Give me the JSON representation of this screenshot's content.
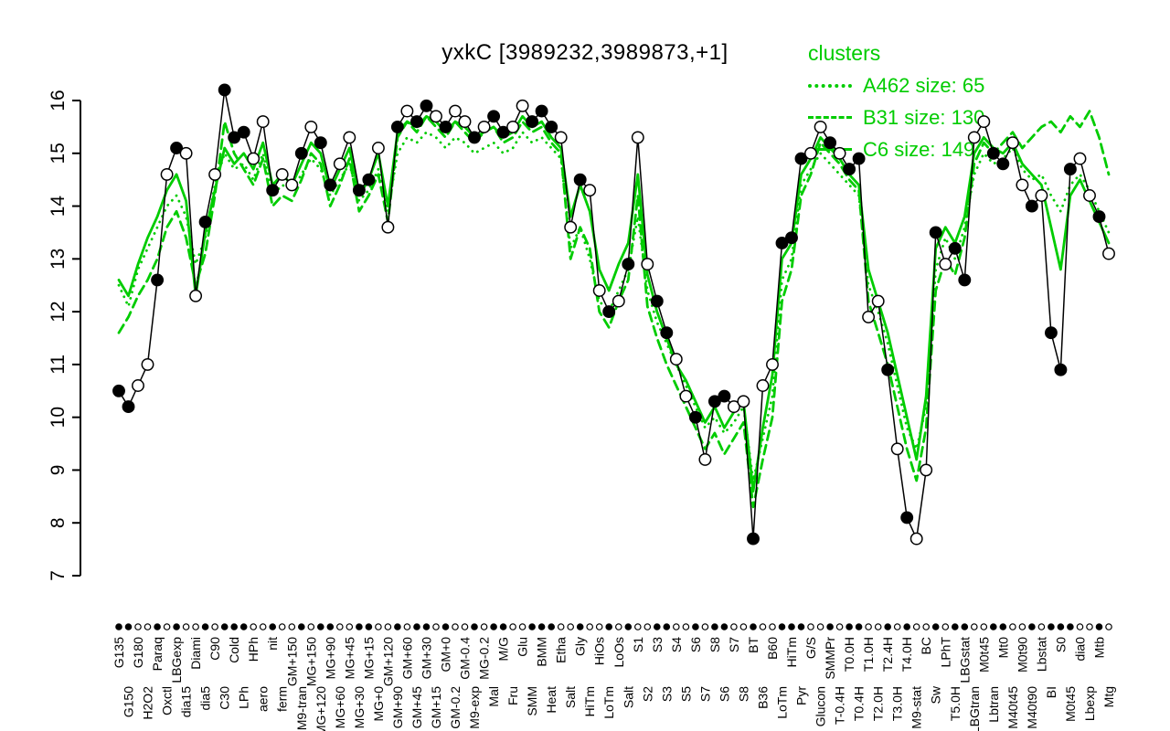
{
  "title": "yxkC [3989232,3989873,+1]",
  "legend": {
    "title": "clusters",
    "entries": [
      {
        "label": "A462 size: 65",
        "style": "dotted"
      },
      {
        "label": "B31 size: 130",
        "style": "dashed"
      },
      {
        "label": "C6 size: 149",
        "style": "solid"
      }
    ]
  },
  "colors": {
    "cluster_green": "#00CC00",
    "series_black": "#000000",
    "background": "#FFFFFF"
  },
  "chart_data": {
    "type": "line",
    "title": "yxkC [3989232,3989873,+1]",
    "xlabel": "",
    "ylabel": "",
    "ylim": [
      7,
      16.4
    ],
    "yticks": [
      7,
      8,
      9,
      10,
      11,
      12,
      13,
      14,
      15,
      16
    ],
    "grid": false,
    "legend_position": "top-right",
    "categories": [
      "G135",
      "G150",
      "G180",
      "H2O2",
      "Paraq",
      "Oxctl",
      "LBGexp",
      "dia15",
      "Diami",
      "dia5",
      "C90",
      "C30",
      "Cold",
      "LPh",
      "HPh",
      "aero",
      "nit",
      "ferm",
      "GM+150",
      "M9-tran",
      "MG+150",
      "MG+120",
      "MG+90",
      "MG+60",
      "MG+45",
      "MG+30",
      "MG+15",
      "MG+0",
      "GM+120",
      "GM+90",
      "GM+60",
      "GM+45",
      "GM+30",
      "GM+15",
      "GM+0",
      "GM-0.2",
      "GM-0.4",
      "M9-exp",
      "MG-0.2",
      "Mal",
      "M/G",
      "Fru",
      "Glu",
      "SMM",
      "BMM",
      "Heat",
      "Etha",
      "Salt",
      "Gly",
      "HiTm",
      "HiOs",
      "LoTm",
      "LoOs",
      "Salt",
      "S1",
      "S2",
      "S3",
      "S3",
      "S4",
      "S5",
      "S6",
      "S7",
      "S8",
      "S6",
      "S7",
      "S8",
      "BT",
      "B36",
      "B60",
      "LoTm",
      "HiTm",
      "Pyr",
      "G/S",
      "Glucon",
      "SMMPr",
      "T-0.4H",
      "T0.0H",
      "T0.4H",
      "T1.0H",
      "T2.0H",
      "T2.4H",
      "T3.0H",
      "T4.0H",
      "M9-stat",
      "BC",
      "Sw",
      "LPhT",
      "T5.0H",
      "LBGstat",
      "LBGtran",
      "M0t45",
      "Lbtran",
      "Mt0",
      "M40t45",
      "M0t90",
      "M40t90",
      "Lbstat",
      "BI",
      "S0",
      "M0t45",
      "dia0",
      "Lbexp",
      "Mtb",
      "Mtg"
    ],
    "series": [
      {
        "name": "yxkC expression",
        "color": "#000000",
        "style": "points-line",
        "values": [
          10.5,
          10.2,
          10.6,
          11.0,
          12.6,
          14.6,
          15.1,
          15.0,
          12.3,
          13.7,
          14.6,
          16.2,
          15.3,
          15.4,
          14.9,
          15.6,
          14.3,
          14.6,
          14.4,
          15.0,
          15.5,
          15.2,
          14.4,
          14.8,
          15.3,
          14.3,
          14.5,
          15.1,
          13.6,
          15.5,
          15.8,
          15.6,
          15.9,
          15.7,
          15.5,
          15.8,
          15.6,
          15.3,
          15.5,
          15.7,
          15.4,
          15.5,
          15.9,
          15.6,
          15.8,
          15.5,
          15.3,
          13.6,
          14.5,
          14.3,
          12.4,
          12.0,
          12.2,
          12.9,
          15.3,
          12.9,
          12.2,
          11.6,
          11.1,
          10.4,
          10.0,
          9.2,
          10.3,
          10.4,
          10.2,
          10.3,
          7.7,
          10.6,
          11.0,
          13.3,
          13.4,
          14.9,
          15.0,
          15.5,
          15.2,
          15.0,
          14.7,
          14.9,
          11.9,
          12.2,
          10.9,
          9.4,
          8.1,
          7.7,
          9.0,
          13.5,
          12.9,
          13.2,
          12.6,
          15.3,
          15.6,
          15.0,
          14.8,
          15.2,
          14.4,
          14.0,
          14.2,
          11.6,
          10.9,
          14.7,
          14.9,
          14.2,
          13.8,
          13.1
        ]
      },
      {
        "name": "A462 size: 65",
        "color": "#00CC00",
        "style": "dotted",
        "values": [
          12.5,
          12.1,
          12.8,
          13.2,
          13.6,
          14.0,
          14.2,
          13.8,
          12.9,
          13.4,
          14.4,
          15.0,
          14.7,
          14.8,
          14.5,
          15.0,
          14.2,
          14.4,
          14.3,
          14.6,
          14.9,
          14.7,
          14.2,
          14.5,
          14.8,
          14.1,
          14.3,
          14.7,
          13.9,
          15.0,
          15.3,
          15.2,
          15.4,
          15.3,
          15.1,
          15.3,
          15.2,
          15.0,
          15.1,
          15.2,
          15.0,
          15.1,
          15.4,
          15.2,
          15.3,
          15.1,
          14.9,
          13.2,
          13.6,
          13.0,
          12.2,
          12.0,
          12.4,
          12.8,
          13.8,
          12.4,
          11.8,
          11.4,
          11.0,
          10.6,
          10.2,
          9.8,
          10.0,
          9.7,
          9.9,
          10.2,
          8.8,
          9.6,
          10.4,
          12.6,
          13.0,
          14.4,
          14.7,
          15.0,
          14.8,
          14.6,
          14.4,
          14.2,
          12.5,
          12.0,
          11.4,
          10.6,
          9.8,
          9.4,
          10.2,
          12.8,
          13.4,
          13.0,
          13.6,
          14.6,
          15.0,
          14.8,
          14.9,
          15.1,
          14.7,
          14.5,
          14.6,
          14.2,
          13.9,
          14.4,
          14.6,
          14.3,
          13.9,
          13.5
        ]
      },
      {
        "name": "B31 size: 130",
        "color": "#00CC00",
        "style": "dashed",
        "values": [
          11.6,
          11.9,
          12.3,
          12.6,
          13.0,
          13.6,
          13.9,
          13.4,
          12.5,
          13.1,
          14.2,
          15.6,
          15.0,
          14.7,
          14.4,
          14.9,
          14.0,
          14.2,
          14.1,
          14.5,
          15.0,
          14.8,
          14.0,
          14.4,
          14.9,
          13.9,
          14.2,
          14.6,
          13.7,
          15.3,
          15.6,
          15.4,
          15.7,
          15.5,
          15.3,
          15.6,
          15.4,
          15.2,
          15.4,
          15.5,
          15.2,
          15.3,
          15.6,
          15.4,
          15.5,
          15.2,
          15.0,
          13.0,
          13.6,
          13.2,
          12.0,
          11.7,
          12.2,
          12.6,
          14.2,
          12.1,
          11.5,
          11.0,
          10.6,
          10.2,
          9.8,
          9.4,
          9.7,
          9.3,
          9.6,
          9.9,
          8.3,
          9.2,
          10.0,
          12.2,
          12.8,
          14.2,
          14.6,
          15.2,
          15.0,
          14.8,
          14.5,
          14.3,
          12.2,
          11.6,
          11.0,
          10.2,
          9.4,
          8.8,
          9.8,
          12.4,
          13.0,
          12.7,
          13.4,
          14.8,
          15.2,
          15.0,
          15.2,
          15.4,
          15.1,
          15.3,
          15.5,
          15.6,
          15.4,
          15.7,
          15.5,
          15.8,
          15.3,
          14.6
        ]
      },
      {
        "name": "C6 size: 149",
        "color": "#00CC00",
        "style": "solid",
        "values": [
          12.6,
          12.3,
          12.9,
          13.4,
          13.8,
          14.3,
          14.6,
          14.1,
          12.3,
          13.5,
          14.3,
          15.1,
          14.8,
          15.0,
          14.7,
          15.2,
          14.4,
          14.6,
          14.4,
          14.8,
          15.2,
          15.0,
          14.3,
          14.7,
          15.1,
          14.2,
          14.5,
          15.0,
          14.0,
          15.4,
          15.6,
          15.5,
          15.7,
          15.6,
          15.4,
          15.6,
          15.5,
          15.3,
          15.4,
          15.5,
          15.3,
          15.4,
          15.7,
          15.5,
          15.6,
          15.3,
          15.1,
          13.8,
          14.4,
          13.9,
          12.8,
          12.4,
          12.9,
          13.3,
          14.6,
          12.7,
          12.0,
          11.5,
          11.0,
          10.7,
          10.3,
          9.9,
          10.2,
          9.8,
          10.1,
          10.3,
          8.6,
          9.8,
          10.8,
          13.0,
          13.3,
          14.6,
          14.9,
          15.3,
          15.1,
          14.9,
          14.6,
          14.4,
          12.8,
          12.2,
          11.6,
          10.8,
          10.0,
          9.2,
          10.4,
          13.2,
          13.6,
          13.3,
          13.8,
          15.0,
          15.3,
          15.1,
          15.0,
          15.2,
          14.8,
          14.6,
          14.4,
          13.6,
          12.8,
          14.2,
          14.5,
          14.1,
          13.7,
          13.3
        ]
      }
    ],
    "point_fill_pattern": "ffoofofoofofffoofoofoffooffoofoffofoofoffoofffoofoofofooffoofoffoofoofffoofoffoofofoofoffooffoofofffoofo"
  }
}
